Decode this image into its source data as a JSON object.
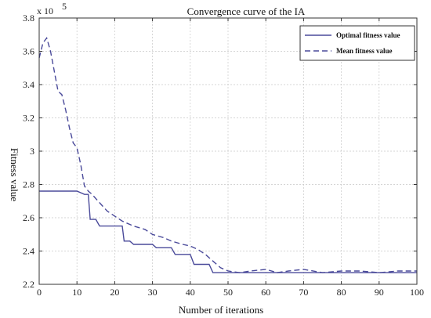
{
  "chart_data": {
    "type": "line",
    "title": "Convergence curve of the IA",
    "xlabel": "Number of iterations",
    "ylabel": "Fitness value",
    "exponent_label": "x 10",
    "exponent_power": "5",
    "xlim": [
      0,
      100
    ],
    "ylim": [
      2.2,
      3.8
    ],
    "xticks": [
      "0",
      "10",
      "20",
      "30",
      "40",
      "50",
      "60",
      "70",
      "80",
      "90",
      "100"
    ],
    "yticks": [
      "2.2",
      "2.4",
      "2.6",
      "2.8",
      "3",
      "3.2",
      "3.4",
      "3.6",
      "3.8"
    ],
    "grid": true,
    "legend_position": "top-right",
    "series": [
      {
        "name": "Optimal fitness value",
        "style": "solid",
        "color": "#4a4a9a",
        "x": [
          0,
          10,
          12,
          13,
          13.5,
          15,
          16,
          16.5,
          22,
          22.5,
          24,
          25,
          26,
          30,
          31,
          35,
          36,
          40,
          41,
          45,
          46,
          100
        ],
        "y": [
          2.76,
          2.76,
          2.74,
          2.74,
          2.59,
          2.59,
          2.55,
          2.55,
          2.55,
          2.46,
          2.46,
          2.44,
          2.44,
          2.44,
          2.42,
          2.42,
          2.38,
          2.38,
          2.32,
          2.32,
          2.27,
          2.27
        ]
      },
      {
        "name": "Mean fitness value",
        "style": "dashed",
        "color": "#4a4a9a",
        "x": [
          0,
          1,
          2,
          3,
          4,
          5,
          6,
          7,
          8,
          9,
          10,
          11,
          12,
          13,
          14,
          16,
          18,
          20,
          22,
          25,
          28,
          30,
          33,
          35,
          38,
          40,
          42,
          44,
          46,
          48,
          50,
          53,
          56,
          60,
          63,
          66,
          70,
          75,
          80,
          85,
          90,
          95,
          100
        ],
        "y": [
          3.56,
          3.65,
          3.68,
          3.6,
          3.48,
          3.36,
          3.34,
          3.25,
          3.14,
          3.05,
          3.02,
          2.92,
          2.79,
          2.76,
          2.74,
          2.69,
          2.64,
          2.61,
          2.58,
          2.55,
          2.53,
          2.5,
          2.48,
          2.46,
          2.44,
          2.43,
          2.41,
          2.38,
          2.34,
          2.3,
          2.28,
          2.27,
          2.28,
          2.29,
          2.27,
          2.28,
          2.29,
          2.27,
          2.28,
          2.28,
          2.27,
          2.28,
          2.28
        ]
      }
    ]
  }
}
